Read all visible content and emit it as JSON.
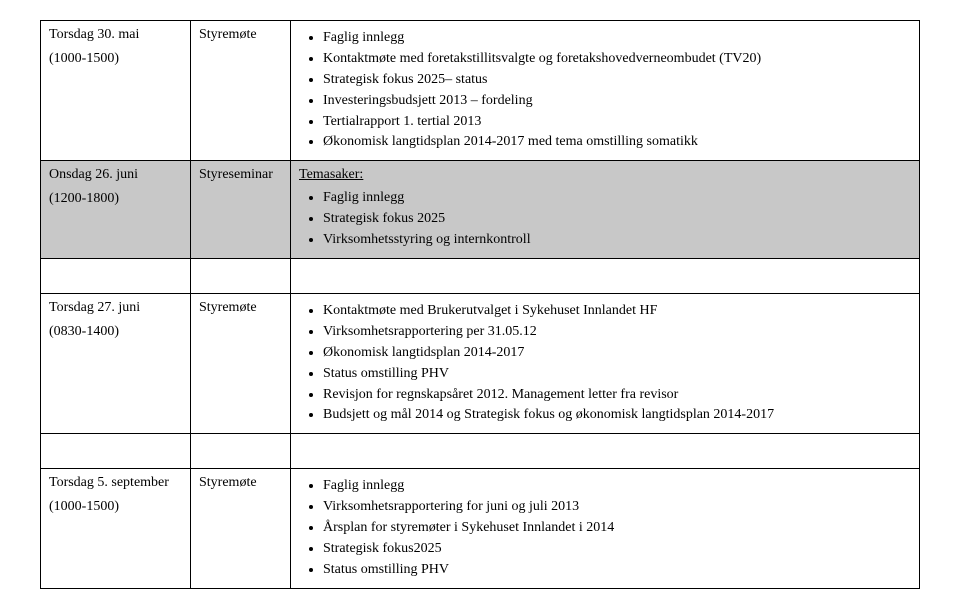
{
  "rows": [
    {
      "date": "Torsdag 30. mai",
      "time": "(1000-1500)",
      "type": "Styremøte",
      "label": null,
      "shaded": false,
      "items": [
        "Faglig innlegg",
        "Kontaktmøte med foretakstillitsvalgte og foretakshovedverneombudet (TV20)",
        "Strategisk fokus 2025– status",
        "Investeringsbudsjett 2013 – fordeling",
        "Tertialrapport 1. tertial 2013",
        "Økonomisk langtidsplan 2014-2017 med tema omstilling somatikk"
      ]
    },
    {
      "date": "Onsdag 26. juni",
      "time": "(1200-1800)",
      "type": "Styreseminar",
      "label": "Temasaker:",
      "shaded": true,
      "items": [
        "Faglig innlegg",
        "Strategisk fokus 2025",
        "Virksomhetsstyring og internkontroll"
      ]
    },
    {
      "date": "Torsdag 27. juni",
      "time": "(0830-1400)",
      "type": "Styremøte",
      "label": null,
      "shaded": false,
      "items": [
        "Kontaktmøte med Brukerutvalget i Sykehuset Innlandet HF",
        "Virksomhetsrapportering per 31.05.12",
        "Økonomisk langtidsplan 2014-2017",
        "Status omstilling PHV",
        "Revisjon for regnskapsåret 2012. Management letter fra revisor",
        "Budsjett og mål 2014 og Strategisk fokus og økonomisk langtidsplan 2014-2017"
      ]
    },
    {
      "date": "Torsdag 5. september",
      "time": "(1000-1500)",
      "type": "Styremøte",
      "label": null,
      "shaded": false,
      "items": [
        "Faglig innlegg",
        "Virksomhetsrapportering for juni og juli 2013",
        "Årsplan for styremøter i Sykehuset Innlandet i 2014",
        "Strategisk fokus2025",
        "Status omstilling PHV"
      ]
    }
  ]
}
